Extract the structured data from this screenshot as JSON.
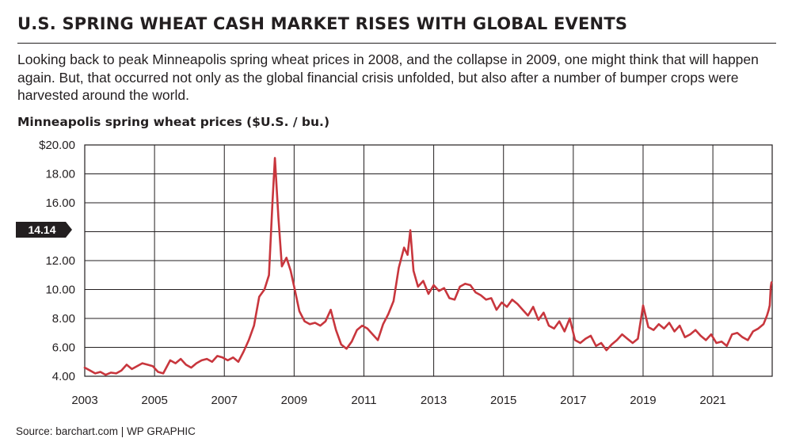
{
  "header": {
    "title": "U.S. SPRING WHEAT CASH MARKET RISES WITH GLOBAL EVENTS",
    "dek": "Looking back to peak Minneapolis spring wheat prices in 2008, and the collapse in 2009, one might think that will happen again.  But, that occurred not only as the global financial crisis unfolded, but also after a number of bumper crops were harvested around the world.",
    "subtitle": "Minneapolis spring wheat prices ($U.S. / bu.)"
  },
  "footer": {
    "source": "Source: barchart.com  |  WP GRAPHIC"
  },
  "chart_data": {
    "type": "line",
    "title": "Minneapolis spring wheat prices ($U.S. / bu.)",
    "xlabel": "",
    "ylabel": "",
    "xlim": [
      2003.0,
      2022.7
    ],
    "ylim": [
      4.0,
      20.0
    ],
    "grid": true,
    "x_ticks": [
      2003,
      2005,
      2007,
      2009,
      2011,
      2013,
      2015,
      2017,
      2019,
      2021
    ],
    "x_tick_labels": [
      "2003",
      "2005",
      "2007",
      "2009",
      "2011",
      "2013",
      "2015",
      "2017",
      "2019",
      "2021"
    ],
    "y_ticks": [
      4,
      6,
      8,
      10,
      12,
      14,
      16,
      18,
      20
    ],
    "y_tick_labels": [
      "4.00",
      "6.00",
      "8.00",
      "10.00",
      "12.00",
      "",
      "16.00",
      "18.00",
      "$20.00"
    ],
    "callout": {
      "label": "14.14",
      "value": 14.14
    },
    "line_color": "#c8363d",
    "series": [
      {
        "name": "Minneapolis spring wheat",
        "points": [
          [
            2003.0,
            4.6
          ],
          [
            2003.15,
            4.4
          ],
          [
            2003.3,
            4.2
          ],
          [
            2003.45,
            4.3
          ],
          [
            2003.6,
            4.1
          ],
          [
            2003.75,
            4.25
          ],
          [
            2003.9,
            4.2
          ],
          [
            2004.05,
            4.4
          ],
          [
            2004.2,
            4.8
          ],
          [
            2004.35,
            4.5
          ],
          [
            2004.5,
            4.7
          ],
          [
            2004.65,
            4.9
          ],
          [
            2004.8,
            4.8
          ],
          [
            2004.95,
            4.7
          ],
          [
            2005.1,
            4.3
          ],
          [
            2005.25,
            4.2
          ],
          [
            2005.45,
            5.1
          ],
          [
            2005.6,
            4.9
          ],
          [
            2005.75,
            5.2
          ],
          [
            2005.9,
            4.8
          ],
          [
            2006.05,
            4.6
          ],
          [
            2006.2,
            4.9
          ],
          [
            2006.35,
            5.1
          ],
          [
            2006.5,
            5.2
          ],
          [
            2006.65,
            5.0
          ],
          [
            2006.8,
            5.4
          ],
          [
            2006.95,
            5.3
          ],
          [
            2007.1,
            5.1
          ],
          [
            2007.25,
            5.3
          ],
          [
            2007.4,
            5.0
          ],
          [
            2007.55,
            5.7
          ],
          [
            2007.7,
            6.5
          ],
          [
            2007.85,
            7.5
          ],
          [
            2008.0,
            9.5
          ],
          [
            2008.15,
            10.0
          ],
          [
            2008.28,
            11.0
          ],
          [
            2008.38,
            16.0
          ],
          [
            2008.45,
            19.1
          ],
          [
            2008.55,
            15.0
          ],
          [
            2008.65,
            11.6
          ],
          [
            2008.78,
            12.2
          ],
          [
            2008.9,
            11.3
          ],
          [
            2009.0,
            10.2
          ],
          [
            2009.15,
            8.5
          ],
          [
            2009.3,
            7.8
          ],
          [
            2009.45,
            7.6
          ],
          [
            2009.6,
            7.7
          ],
          [
            2009.75,
            7.5
          ],
          [
            2009.9,
            7.8
          ],
          [
            2010.05,
            8.6
          ],
          [
            2010.2,
            7.2
          ],
          [
            2010.35,
            6.2
          ],
          [
            2010.5,
            5.9
          ],
          [
            2010.65,
            6.4
          ],
          [
            2010.8,
            7.2
          ],
          [
            2010.95,
            7.5
          ],
          [
            2011.1,
            7.3
          ],
          [
            2011.25,
            6.9
          ],
          [
            2011.4,
            6.5
          ],
          [
            2011.55,
            7.6
          ],
          [
            2011.7,
            8.3
          ],
          [
            2011.85,
            9.2
          ],
          [
            2012.0,
            11.5
          ],
          [
            2012.15,
            12.9
          ],
          [
            2012.25,
            12.4
          ],
          [
            2012.33,
            14.1
          ],
          [
            2012.42,
            11.3
          ],
          [
            2012.55,
            10.2
          ],
          [
            2012.7,
            10.6
          ],
          [
            2012.85,
            9.7
          ],
          [
            2013.0,
            10.3
          ],
          [
            2013.15,
            9.9
          ],
          [
            2013.3,
            10.1
          ],
          [
            2013.45,
            9.4
          ],
          [
            2013.6,
            9.3
          ],
          [
            2013.75,
            10.2
          ],
          [
            2013.9,
            10.4
          ],
          [
            2014.05,
            10.3
          ],
          [
            2014.2,
            9.8
          ],
          [
            2014.35,
            9.6
          ],
          [
            2014.5,
            9.3
          ],
          [
            2014.65,
            9.4
          ],
          [
            2014.8,
            8.6
          ],
          [
            2014.95,
            9.1
          ],
          [
            2015.1,
            8.8
          ],
          [
            2015.25,
            9.3
          ],
          [
            2015.4,
            9.0
          ],
          [
            2015.55,
            8.6
          ],
          [
            2015.7,
            8.2
          ],
          [
            2015.85,
            8.8
          ],
          [
            2016.0,
            7.9
          ],
          [
            2016.15,
            8.4
          ],
          [
            2016.3,
            7.5
          ],
          [
            2016.45,
            7.3
          ],
          [
            2016.6,
            7.8
          ],
          [
            2016.75,
            7.1
          ],
          [
            2016.9,
            8.0
          ],
          [
            2017.05,
            6.5
          ],
          [
            2017.2,
            6.3
          ],
          [
            2017.35,
            6.6
          ],
          [
            2017.5,
            6.8
          ],
          [
            2017.65,
            6.1
          ],
          [
            2017.8,
            6.3
          ],
          [
            2017.95,
            5.8
          ],
          [
            2018.1,
            6.2
          ],
          [
            2018.25,
            6.5
          ],
          [
            2018.4,
            6.9
          ],
          [
            2018.55,
            6.6
          ],
          [
            2018.7,
            6.3
          ],
          [
            2018.85,
            6.6
          ],
          [
            2019.0,
            8.9
          ],
          [
            2019.15,
            7.4
          ],
          [
            2019.3,
            7.2
          ],
          [
            2019.45,
            7.6
          ],
          [
            2019.6,
            7.3
          ],
          [
            2019.75,
            7.7
          ],
          [
            2019.9,
            7.1
          ],
          [
            2020.05,
            7.5
          ],
          [
            2020.2,
            6.7
          ],
          [
            2020.35,
            6.9
          ],
          [
            2020.5,
            7.2
          ],
          [
            2020.65,
            6.8
          ],
          [
            2020.8,
            6.5
          ],
          [
            2020.95,
            6.9
          ],
          [
            2021.1,
            6.3
          ],
          [
            2021.25,
            6.4
          ],
          [
            2021.4,
            6.1
          ],
          [
            2021.55,
            6.9
          ],
          [
            2021.7,
            7.0
          ],
          [
            2021.85,
            6.7
          ],
          [
            2022.0,
            6.5
          ],
          [
            2022.15,
            7.1
          ],
          [
            2022.3,
            7.3
          ],
          [
            2022.45,
            7.6
          ],
          [
            2022.55,
            8.2
          ],
          [
            2022.6,
            8.6
          ],
          [
            2022.63,
            8.9
          ],
          [
            2022.66,
            10.2
          ],
          [
            2022.68,
            10.5
          ]
        ]
      }
    ]
  }
}
